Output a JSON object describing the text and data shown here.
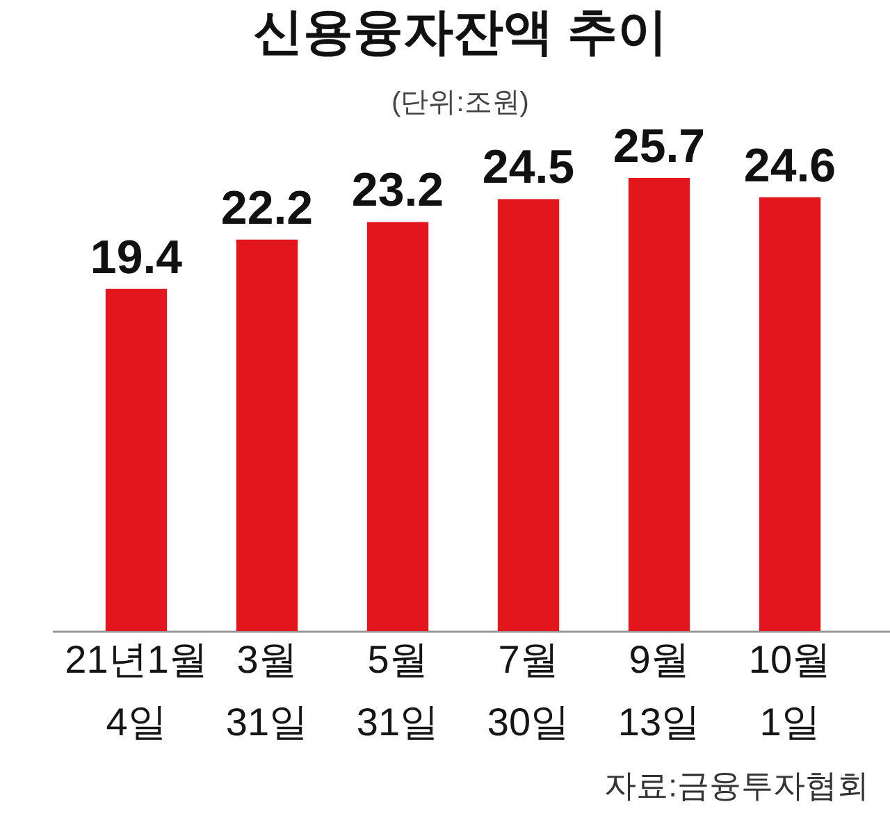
{
  "chart_data": {
    "type": "bar",
    "title": "신용융자잔액 추이",
    "subtitle": "(단위:조원)",
    "categories": [
      "21년1월 4일",
      "3월 31일",
      "5월 31일",
      "7월 30일",
      "9월 13일",
      "10월 1일"
    ],
    "values": [
      19.4,
      22.2,
      23.2,
      24.5,
      25.7,
      24.6
    ],
    "color": "#e3151d",
    "data_labels": true,
    "tick_labels": "x",
    "grid": false,
    "annotations": [
      "자료:금융투자협회"
    ]
  }
}
